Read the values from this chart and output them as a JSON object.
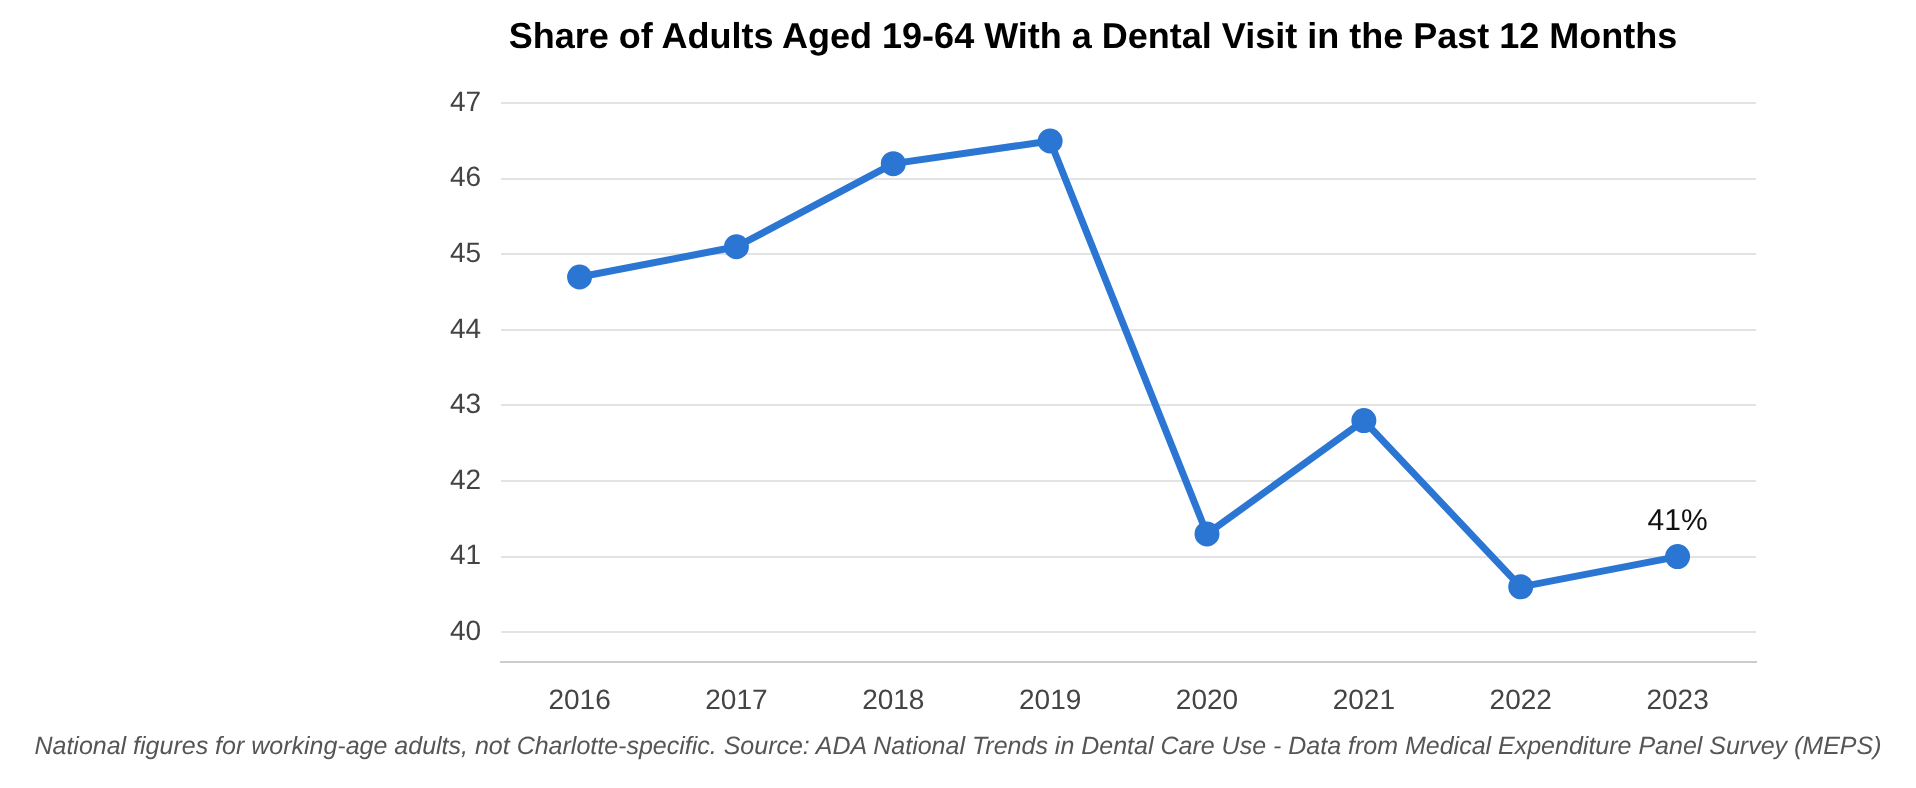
{
  "chart_data": {
    "type": "line",
    "title": "Share of Adults Aged 19-64 With a Dental Visit in the Past 12 Months",
    "categories": [
      "2016",
      "2017",
      "2018",
      "2019",
      "2020",
      "2021",
      "2022",
      "2023"
    ],
    "series": [
      {
        "color": "#2b76d2",
        "values": [
          44.7,
          45.1,
          46.2,
          46.5,
          41.3,
          42.8,
          40.6,
          41.0
        ],
        "value_labels": [
          null,
          null,
          null,
          null,
          null,
          null,
          null,
          "41%"
        ]
      }
    ],
    "ylim": [
      39.6,
      47
    ],
    "yticks": [
      40,
      41,
      42,
      43,
      44,
      45,
      46,
      47
    ],
    "grid": "y",
    "legend": false,
    "marker": "circle",
    "line_style": "solid",
    "annotations": [
      "National figures for working-age adults, not Charlotte-specific. Source: ADA National Trends in Dental Care Use - Data from Medical Expenditure Panel Survey (MEPS)"
    ]
  }
}
